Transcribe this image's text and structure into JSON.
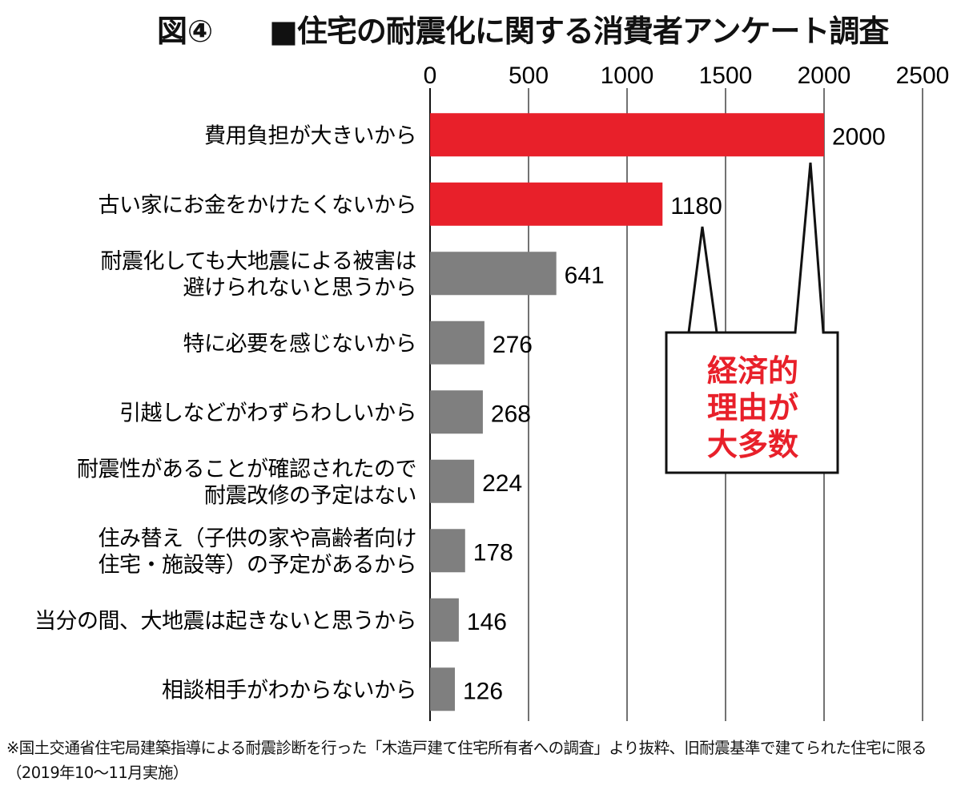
{
  "title": {
    "prefix": "図④",
    "main": "■住宅の耐震化に関する消費者アンケート調査"
  },
  "callout": {
    "lines": [
      "経済的",
      "理由が",
      "大多数"
    ],
    "color": "#e8202a"
  },
  "footnote": "※国土交通省住宅局建築指導による耐震診断を行った「木造戸建て住宅所有者への調査」より抜粋、旧耐震基準で建てられた住宅に限る（2019年10〜11月実施）",
  "colors": {
    "highlight": "#e8202a",
    "normal": "#7f7f7f"
  },
  "chart_data": {
    "type": "bar",
    "orientation": "horizontal",
    "xlim": [
      0,
      2500
    ],
    "xticks": [
      0,
      500,
      1000,
      1500,
      2000,
      2500
    ],
    "grid": true,
    "categories": [
      [
        "費用負担が大きいから"
      ],
      [
        "古い家にお金をかけたくないから"
      ],
      [
        "耐震化しても大地震による被害は",
        "避けられないと思うから"
      ],
      [
        "特に必要を感じないから"
      ],
      [
        "引越しなどがわずらわしいから"
      ],
      [
        "耐震性があることが確認されたので",
        "耐震改修の予定はない"
      ],
      [
        "住み替え（子供の家や高齢者向け",
        "住宅・施設等）の予定があるから"
      ],
      [
        "当分の間、大地震は起きないと思うから"
      ],
      [
        "相談相手がわからないから"
      ]
    ],
    "values": [
      2000,
      1180,
      641,
      276,
      268,
      224,
      178,
      146,
      126
    ],
    "highlight": [
      true,
      true,
      false,
      false,
      false,
      false,
      false,
      false,
      false
    ]
  }
}
